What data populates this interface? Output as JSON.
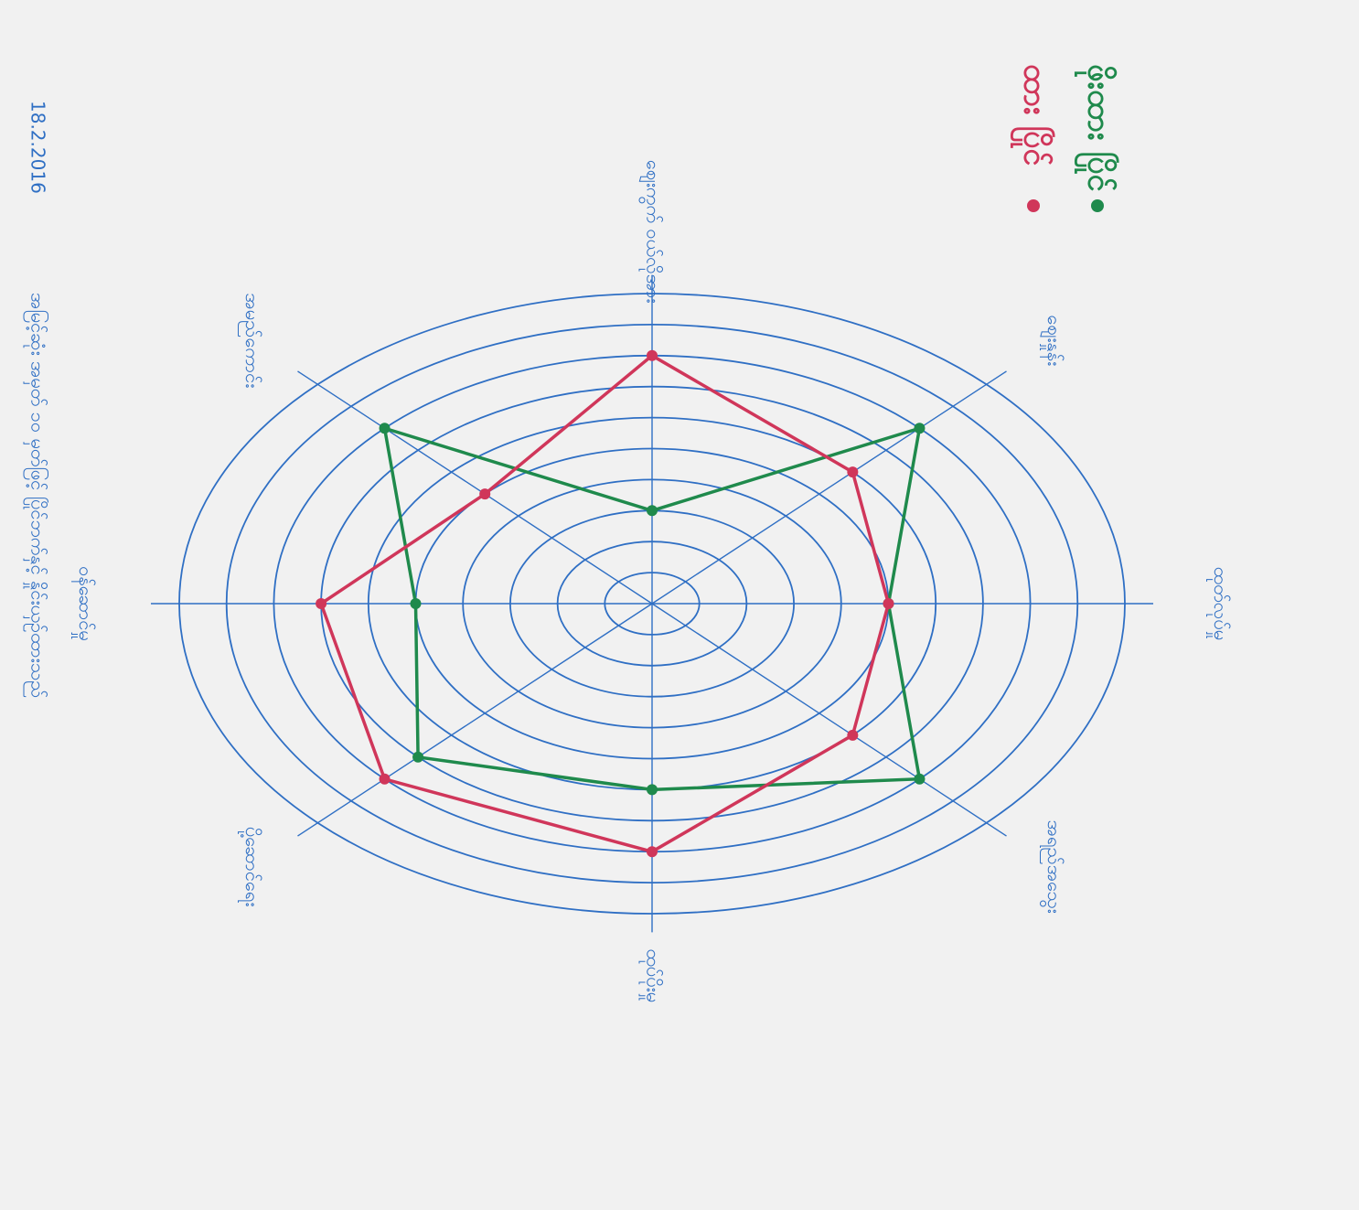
{
  "chart_data": {
    "type": "radar",
    "date": "18.2.2016",
    "note": "အမြင့်ဆုံး အမှတ် ၁၀ မှတ်ဖြင့် ပြိုင်ဘက်နှင့် နှိုင်းယှဉ်ထားသည်",
    "categories": [
      "ဈေးကွက် ဝယ်လိုအား",
      "ဈေးနှုန်း",
      "ထုတ်လုပ်မှု",
      "အရည်အသွေး",
      "ထုပ်ပိုးမှု",
      "ပို့ဆောင်ရေး",
      "ဝန်ဆောင်မှု",
      "အမည်ကောင်း"
    ],
    "series": [
      {
        "name": "ဖိုးထား ပြိုင်",
        "color": "#1f8a4c",
        "values": [
          3,
          8,
          5,
          8,
          6,
          7,
          5,
          8
        ]
      },
      {
        "name": "ထား ပြိုင်",
        "color": "#d0365a",
        "values": [
          8,
          6,
          5,
          6,
          8,
          8,
          7,
          5
        ]
      }
    ],
    "ylim": [
      0,
      10
    ],
    "yticks": [
      1,
      2,
      3,
      4,
      5,
      6,
      7,
      8,
      9,
      10
    ]
  }
}
